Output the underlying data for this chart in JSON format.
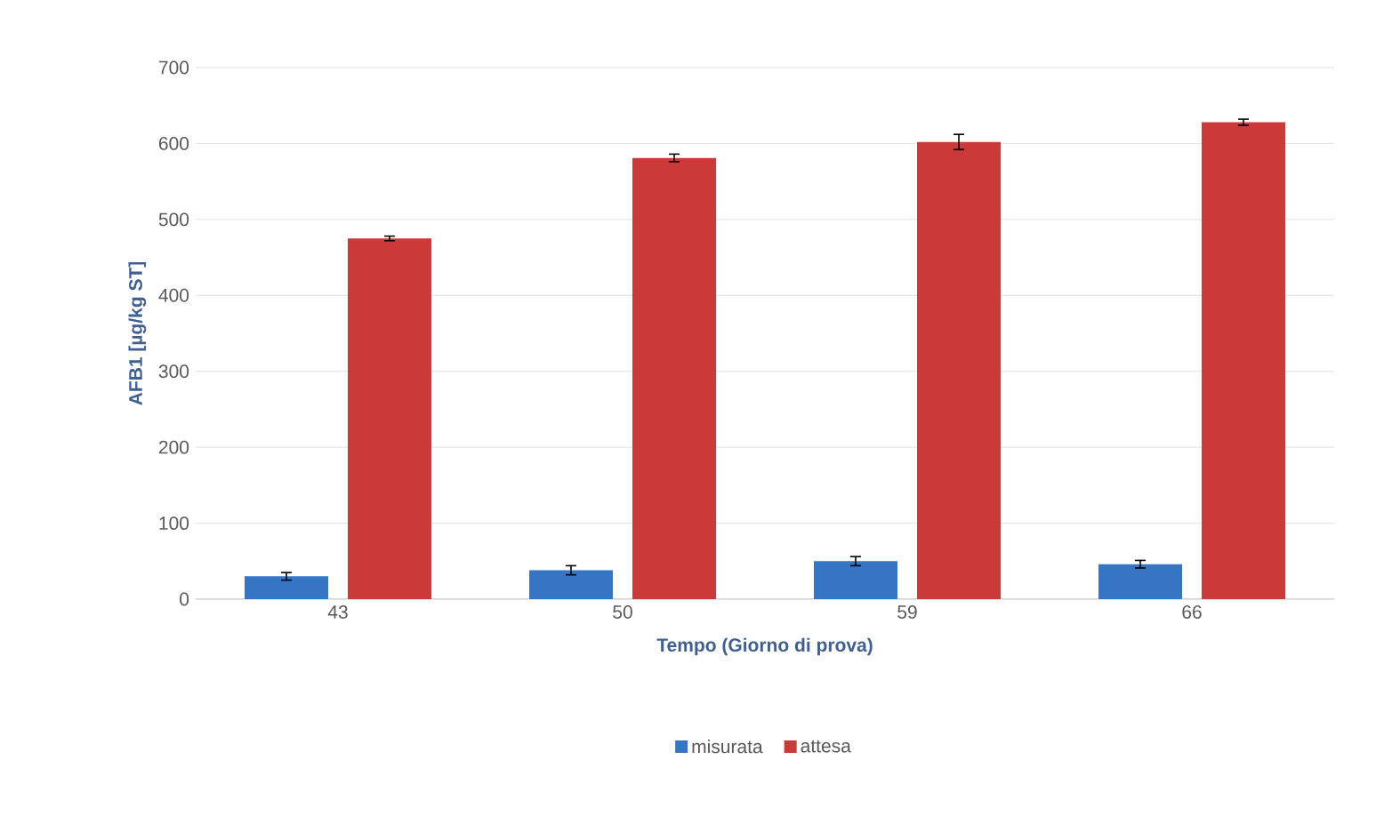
{
  "chart_data": {
    "type": "bar",
    "xlabel": "Tempo (Giorno di prova)",
    "ylabel": "AFB1 [µg/kg ST]",
    "categories": [
      "43",
      "50",
      "59",
      "66"
    ],
    "series": [
      {
        "name": "misurata",
        "color": "#3674c4",
        "values": [
          30,
          38,
          50,
          46
        ],
        "errors": [
          5,
          6,
          6,
          5
        ]
      },
      {
        "name": "attesa",
        "color": "#c93a38",
        "values": [
          475,
          581,
          602,
          628
        ],
        "errors": [
          3,
          5,
          10,
          4
        ]
      }
    ],
    "ylim": [
      0,
      700
    ],
    "yticks": [
      0,
      100,
      200,
      300,
      400,
      500,
      600,
      700
    ],
    "grid": "y",
    "legend": "bottom"
  }
}
